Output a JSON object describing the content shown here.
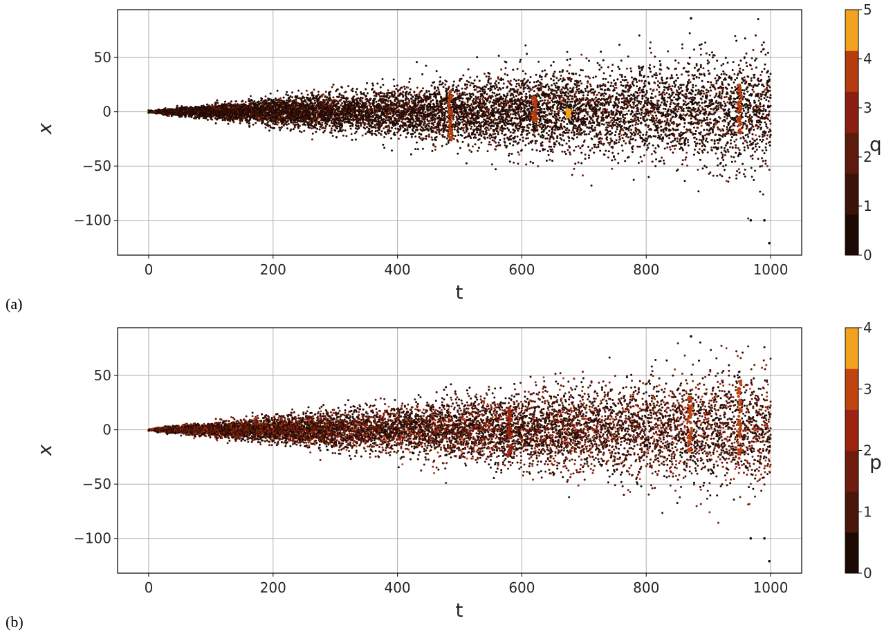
{
  "chart_data": [
    {
      "type": "scatter",
      "panel_label": "(a)",
      "xlabel": "t",
      "ylabel": "x",
      "xlim": [
        -50,
        1050
      ],
      "ylim": [
        -132,
        94
      ],
      "xticks": [
        0,
        200,
        400,
        600,
        800,
        1000
      ],
      "xtick_labels": [
        "0",
        "200",
        "400",
        "600",
        "800",
        "1000"
      ],
      "yticks": [
        -100,
        -50,
        0,
        50
      ],
      "ytick_labels": [
        "−100",
        "−50",
        "0",
        "50"
      ],
      "grid": true,
      "colorbar": {
        "label": "q",
        "min": 0,
        "max": 5,
        "ticks": [
          "0",
          "1",
          "2",
          "3",
          "4",
          "5"
        ],
        "colors": [
          "#1e0a04",
          "#3c1308",
          "#5e1a0c",
          "#891f10",
          "#b53d0d",
          "#f2a21e"
        ]
      },
      "points_summary": {
        "t_range": [
          0,
          1000
        ],
        "spread_growth": "approximately linear, half-width about 4 at t=100 to about 60 at t=1000",
        "extremes": [
          {
            "t": 872,
            "x": 86
          },
          {
            "t": 998,
            "x": -121
          },
          {
            "t": 968,
            "x": -100
          },
          {
            "t": 990,
            "x": -100
          }
        ],
        "highlight_bands": [
          {
            "t": 485,
            "x_range": [
              -26,
              24
            ],
            "value": 3.5
          },
          {
            "t": 620,
            "x_range": [
              -10,
              14
            ],
            "value": 3.5
          },
          {
            "t": 675,
            "x_range": [
              -5,
              2
            ],
            "value": 4.5
          },
          {
            "t": 950,
            "x_range": [
              -20,
              25
            ],
            "value": 3.5
          }
        ]
      }
    },
    {
      "type": "scatter",
      "panel_label": "(b)",
      "xlabel": "t",
      "ylabel": "x",
      "xlim": [
        -50,
        1050
      ],
      "ylim": [
        -132,
        94
      ],
      "xticks": [
        0,
        200,
        400,
        600,
        800,
        1000
      ],
      "xtick_labels": [
        "0",
        "200",
        "400",
        "600",
        "800",
        "1000"
      ],
      "yticks": [
        -100,
        -50,
        0,
        50
      ],
      "ytick_labels": [
        "−100",
        "−50",
        "0",
        "50"
      ],
      "grid": true,
      "colorbar": {
        "label": "p",
        "min": 0,
        "max": 4,
        "ticks": [
          "0",
          "1",
          "2",
          "3",
          "4"
        ],
        "colors": [
          "#1e0a04",
          "#4a170a",
          "#6e1d0e",
          "#9c2411",
          "#c04410",
          "#f2a21e"
        ]
      },
      "points_summary": {
        "t_range": [
          0,
          1000
        ],
        "spread_growth": "approximately linear, half-width about 4 at t=100 to about 60 at t=1000",
        "extremes": [
          {
            "t": 872,
            "x": 86
          },
          {
            "t": 998,
            "x": -121
          },
          {
            "t": 968,
            "x": -100
          },
          {
            "t": 990,
            "x": -100
          }
        ],
        "highlight_bands": [
          {
            "t": 580,
            "x_range": [
              -25,
              20
            ],
            "value": 2.5
          },
          {
            "t": 870,
            "x_range": [
              -20,
              30
            ],
            "value": 2.7
          },
          {
            "t": 950,
            "x_range": [
              -30,
              45
            ],
            "value": 2.7
          }
        ]
      }
    }
  ]
}
